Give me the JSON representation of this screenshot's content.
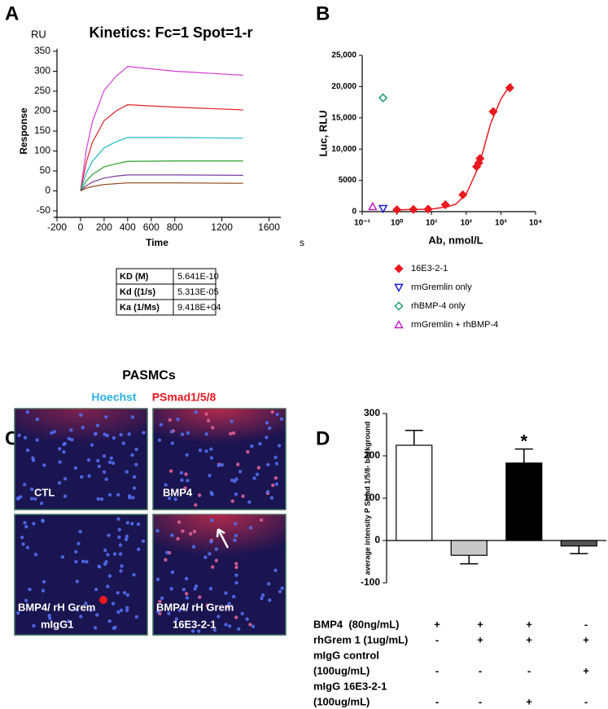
{
  "panel_labels": [
    "A",
    "B",
    "C",
    "D"
  ],
  "chart_data": [
    {
      "type": "line",
      "title": "Kinetics: Fc=1 Spot=1-r",
      "y_unit": "RU",
      "y_label": "Response",
      "x_label": "Time",
      "x_unit": "s",
      "x": [
        0,
        50,
        100,
        200,
        300,
        400,
        800,
        1380
      ],
      "xlim": [
        -200,
        1700
      ],
      "xticks": [
        -200,
        0,
        200,
        400,
        600,
        800,
        1200,
        1600
      ],
      "ylim": [
        -50,
        350
      ],
      "yticks": [
        -50,
        0,
        50,
        100,
        150,
        200,
        250,
        300,
        350
      ],
      "series": [
        {
          "color": "#d23fd6",
          "values": [
            0,
            104,
            173,
            252,
            287,
            312,
            300,
            290
          ]
        },
        {
          "color": "#e0242a",
          "values": [
            0,
            73,
            121,
            176,
            200,
            216,
            210,
            203
          ]
        },
        {
          "color": "#19b7c8",
          "values": [
            0,
            45,
            74,
            108,
            123,
            134,
            134,
            132
          ]
        },
        {
          "color": "#2ca02c",
          "values": [
            0,
            25,
            41,
            60,
            68,
            74,
            75,
            75
          ]
        },
        {
          "color": "#7b3fa0",
          "values": [
            0,
            13,
            22,
            32,
            37,
            40,
            40,
            39
          ]
        },
        {
          "color": "#8b4513",
          "values": [
            0,
            7,
            11,
            16,
            18,
            20,
            20,
            19
          ]
        }
      ]
    },
    {
      "type": "scatter",
      "y_label": "Luc, RLU",
      "x_label": "Ab, nmol/L",
      "log_x": true,
      "xlim": [
        0.1,
        10000
      ],
      "xticks": [
        {
          "value": 0.1,
          "label": "10⁻¹"
        },
        {
          "value": 1,
          "label": "10⁰"
        },
        {
          "value": 10,
          "label": "10¹"
        },
        {
          "value": 100,
          "label": "10²"
        },
        {
          "value": 1000,
          "label": "10³"
        },
        {
          "value": 10000,
          "label": "10⁴"
        }
      ],
      "ylim": [
        0,
        25000
      ],
      "yticks": [
        0,
        5000,
        {
          "value": 10000,
          "label": "10,000"
        },
        {
          "value": 15000,
          "label": "15,000"
        },
        {
          "value": 20000,
          "label": "20,000"
        },
        {
          "value": 25000,
          "label": "25,000"
        }
      ],
      "series": [
        {
          "name": "16E3-2-1",
          "color": "#e8191f",
          "marker": "diamond",
          "filled": true,
          "x": [
            1,
            3,
            8,
            25,
            80,
            200,
            230,
            250,
            600,
            1800
          ],
          "values": [
            300,
            350,
            400,
            1100,
            2700,
            7200,
            7800,
            8500,
            16000,
            19800
          ]
        },
        {
          "name": "rmGremlin only",
          "color": "#1a1adb",
          "marker": "triangle-down",
          "filled": false,
          "x": [
            0.4
          ],
          "values": [
            500
          ]
        },
        {
          "name": "rhBMP-4 only",
          "color": "#1a9a6a",
          "marker": "diamond",
          "filled": false,
          "x": [
            0.4
          ],
          "values": [
            18200
          ]
        },
        {
          "name": "rmGremlin + rhBMP-4",
          "color": "#c21fc2",
          "marker": "triangle-up",
          "filled": false,
          "x": [
            0.2
          ],
          "values": [
            800
          ]
        },
        {
          "color": "#e8191f",
          "style": "line",
          "x": [
            1,
            10,
            30,
            50,
            100,
            200,
            300,
            500,
            1000,
            2000
          ],
          "values": [
            300,
            400,
            800,
            1200,
            2800,
            6500,
            9500,
            14000,
            18000,
            20500
          ]
        }
      ]
    },
    {
      "type": "bar",
      "y_label": "average intensity P Smad 1/5/8- background",
      "categories": [
        null,
        null,
        null,
        null
      ],
      "values": [
        225,
        -35,
        183,
        -13
      ],
      "errors": [
        35,
        20,
        33,
        18
      ],
      "colors": [
        "#ffffff",
        "#c8c8c8",
        "#000000",
        "#555555"
      ],
      "ylim": [
        -100,
        300
      ],
      "yticks": [
        -100,
        0,
        100,
        200,
        300
      ],
      "annotation": "*"
    }
  ],
  "kinetics_table": {
    "rows": [
      [
        "KD (M)",
        "5.641E-10"
      ],
      [
        "Kd ((1/s)",
        "5.313E-05"
      ],
      [
        "Ka (1/Ms)",
        "9.418E+04"
      ]
    ]
  },
  "micrographs": {
    "title": "PASMCs",
    "stains": [
      "Hoechst",
      "PSmad1/5/8"
    ],
    "panels": [
      [
        "CTL"
      ],
      [
        "BMP4"
      ],
      [
        "BMP4/ rH Grem",
        "mIgG1"
      ],
      [
        "BMP4/ rH Grem",
        "16E3-2-1"
      ]
    ]
  },
  "conditions": {
    "rows": [
      {
        "label": [
          "BMP4  (80ng/mL)"
        ],
        "signs": [
          "+",
          "+",
          "+",
          "-"
        ]
      },
      {
        "label": [
          "rhGrem 1 (1ug/mL)"
        ],
        "signs": [
          "-",
          "+",
          "+",
          "+"
        ]
      },
      {
        "label": [
          "mIgG control",
          "(100ug/mL)"
        ],
        "signs": [
          "-",
          "-",
          "-",
          "+"
        ]
      },
      {
        "label": [
          "mIgG 16E3-2-1",
          "(100ug/mL)"
        ],
        "signs": [
          "-",
          "-",
          "+",
          "-"
        ]
      }
    ]
  }
}
